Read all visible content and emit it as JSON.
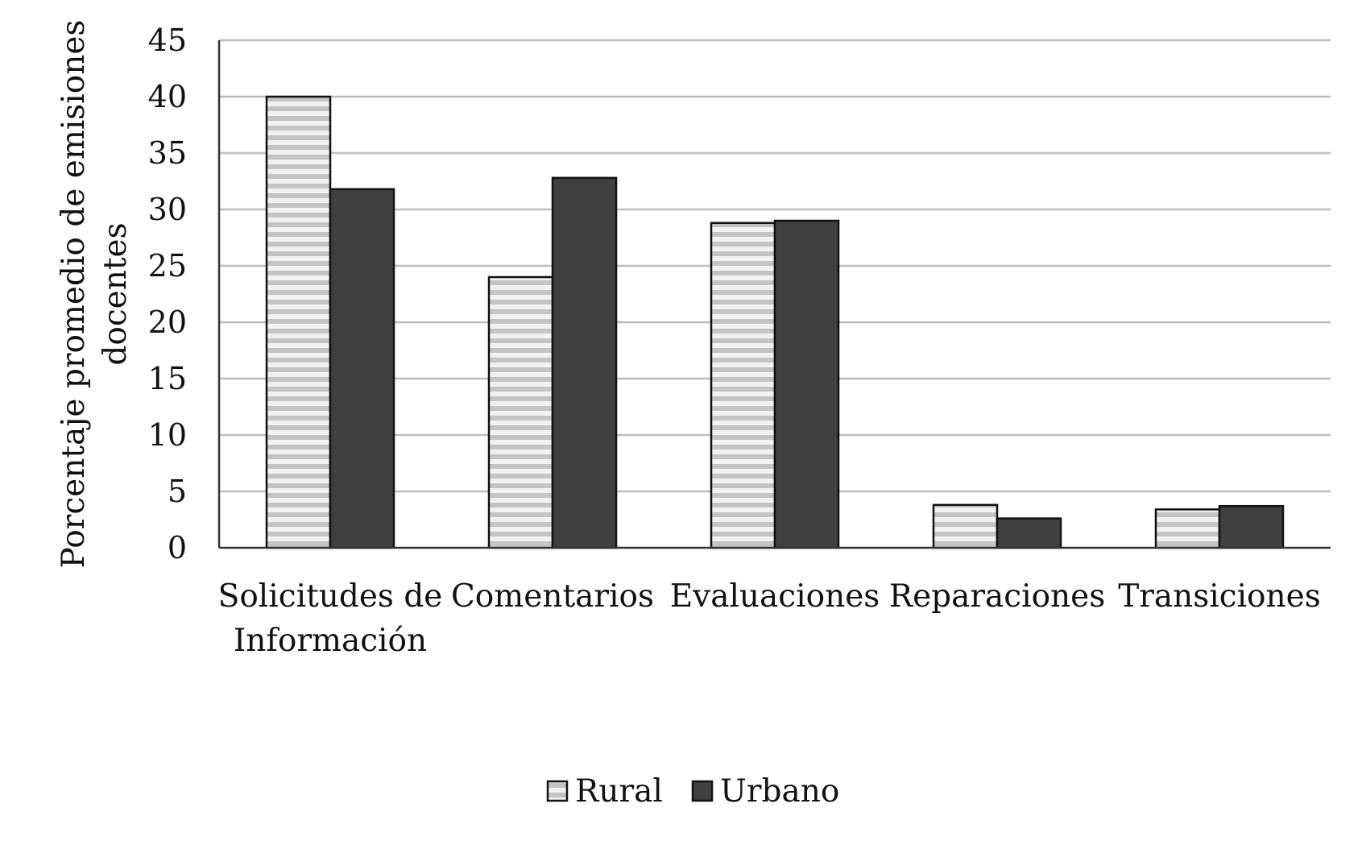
{
  "chart_data": {
    "type": "bar",
    "title": "",
    "xlabel": "",
    "ylabel": [
      "Porcentaje promedio de emisiones",
      "docentes"
    ],
    "ylim": [
      0,
      45
    ],
    "yticks": [
      0,
      5,
      10,
      15,
      20,
      25,
      30,
      35,
      40,
      45
    ],
    "grid": true,
    "legend_position": "bottom",
    "categories": [
      [
        "Solicitudes de",
        "Información"
      ],
      [
        "Comentarios"
      ],
      [
        "Evaluaciones"
      ],
      [
        "Reparaciones"
      ],
      [
        "Transiciones"
      ]
    ],
    "series": [
      {
        "name": "Rural",
        "style": "striped",
        "values": [
          40,
          24,
          28.8,
          3.8,
          3.4
        ]
      },
      {
        "name": "Urbano",
        "style": "solid",
        "values": [
          31.8,
          32.8,
          29,
          2.6,
          3.7
        ]
      }
    ],
    "colors": {
      "urban_fill": "#404040",
      "stripe_light": "#c4c4c4",
      "stripe_bg": "#f2f2f2",
      "grid": "#bdbdbd",
      "axis": "#333333"
    }
  }
}
